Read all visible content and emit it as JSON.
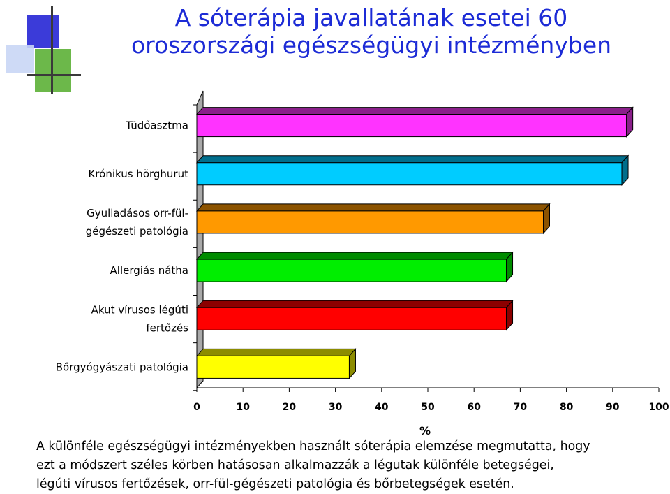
{
  "title": {
    "line1": "A sóterápia javallatának esetei 60",
    "line2": "oroszországi egészségügyi intézményben"
  },
  "colors": {
    "title": "#1c2bd6",
    "deco_blue": "#3b3bd9",
    "deco_green": "#6cb84a",
    "deco_lightblue": "#c9d6f5"
  },
  "chart_data": {
    "type": "bar",
    "orientation": "horizontal",
    "categories": [
      [
        "Tüdőasztma"
      ],
      [
        "Krónikus hörghurut"
      ],
      [
        "Gyulladásos orr-fül-",
        "gégészeti patológia"
      ],
      [
        "Allergiás nátha"
      ],
      [
        "Akut vírusos légúti",
        "fertőzés"
      ],
      [
        "Bőrgyógyászati patológia"
      ]
    ],
    "values": [
      93,
      92,
      75,
      67,
      67,
      33
    ],
    "bar_colors": [
      "#ff33ff",
      "#00ccff",
      "#ff9900",
      "#00ee00",
      "#ff0000",
      "#ffff00"
    ],
    "side_colors": [
      "#8a1f8a",
      "#006e8c",
      "#8c5300",
      "#008c00",
      "#8c0000",
      "#8c8c00"
    ],
    "xlim": [
      0,
      100
    ],
    "xticks": [
      "0",
      "10",
      "20",
      "30",
      "40",
      "50",
      "60",
      "70",
      "80",
      "90",
      "100"
    ],
    "xlabel": "%",
    "three_d": true
  },
  "caption": {
    "line1": "A különféle egészségügyi intézményekben használt sóterápia elemzése megmutatta, hogy",
    "line2": "ezt a módszert  széles körben hatásosan  alkalmazzák a  légutak  különféle betegségei,",
    "line3": "légúti vírusos fertőzések, orr-fül-gégészeti patológia és bőrbetegségek esetén."
  }
}
